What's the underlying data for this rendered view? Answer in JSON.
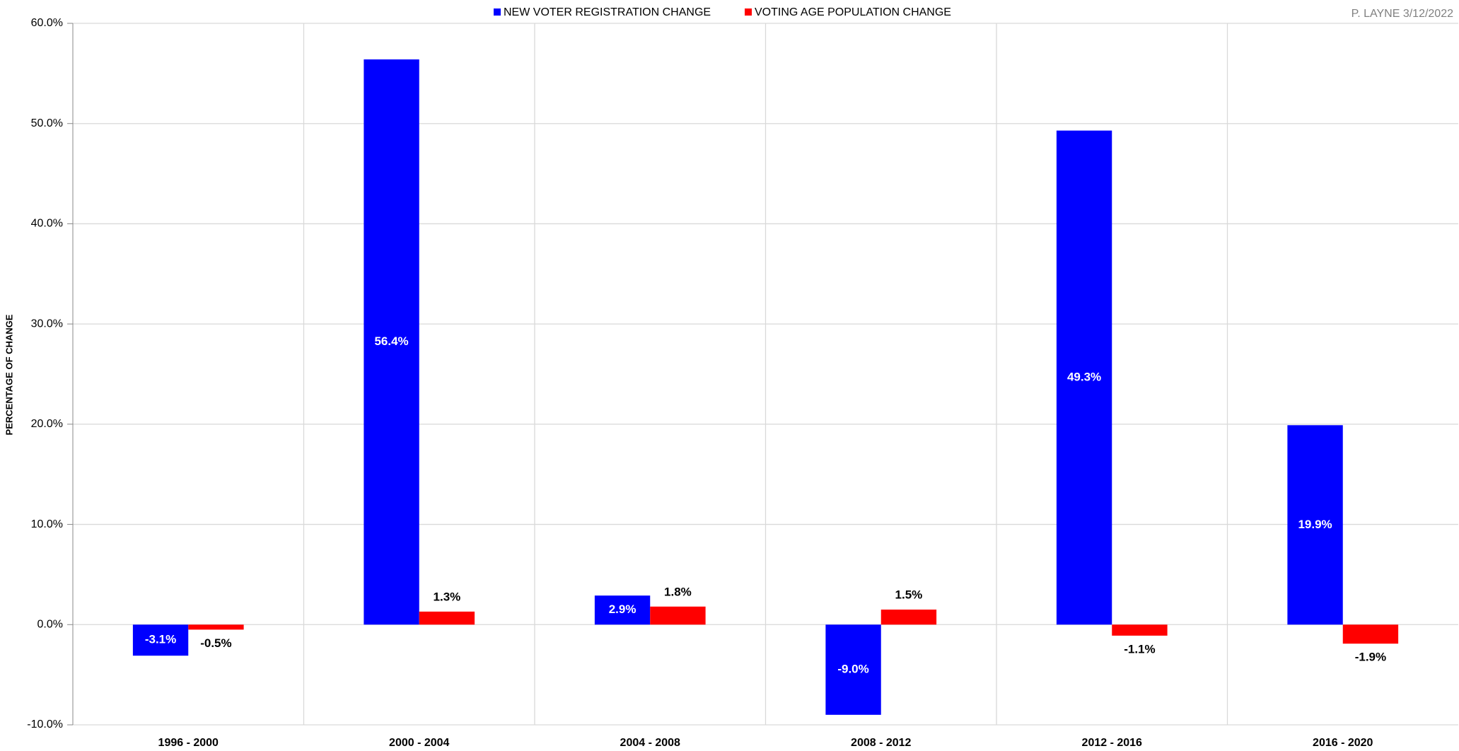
{
  "chart_data": {
    "type": "bar",
    "y_label": "PERCENTAGE OF CHANGE",
    "note": "P. LAYNE 3/12/2022",
    "categories": [
      "1996 - 2000",
      "2000 - 2004",
      "2004 - 2008",
      "2008 - 2012",
      "2012 - 2016",
      "2016 - 2020"
    ],
    "series": [
      {
        "name": "NEW VOTER REGISTRATION CHANGE",
        "color": "#0000ff",
        "values": [
          -3.1,
          56.4,
          2.9,
          -9.0,
          49.3,
          19.9
        ],
        "value_labels": [
          "-3.1%",
          "56.4%",
          "2.9%",
          "-9.0%",
          "49.3%",
          "19.9%"
        ]
      },
      {
        "name": "VOTING AGE POPULATION CHANGE",
        "color": "#ff0000",
        "values": [
          -0.5,
          1.3,
          1.8,
          1.5,
          -1.1,
          -1.9
        ],
        "value_labels": [
          "-0.5%",
          "1.3%",
          "1.8%",
          "1.5%",
          "-1.1%",
          "-1.9%"
        ]
      }
    ],
    "ylim": [
      -10,
      60
    ],
    "yticks": [
      {
        "value": -10,
        "label": "-10.0%"
      },
      {
        "value": 0,
        "label": "0.0%"
      },
      {
        "value": 10,
        "label": "10.0%"
      },
      {
        "value": 20,
        "label": "20.0%"
      },
      {
        "value": 30,
        "label": "30.0%"
      },
      {
        "value": 40,
        "label": "40.0%"
      },
      {
        "value": 50,
        "label": "50.0%"
      },
      {
        "value": 60,
        "label": "60.0%"
      }
    ],
    "grid": true,
    "legend": "top"
  }
}
